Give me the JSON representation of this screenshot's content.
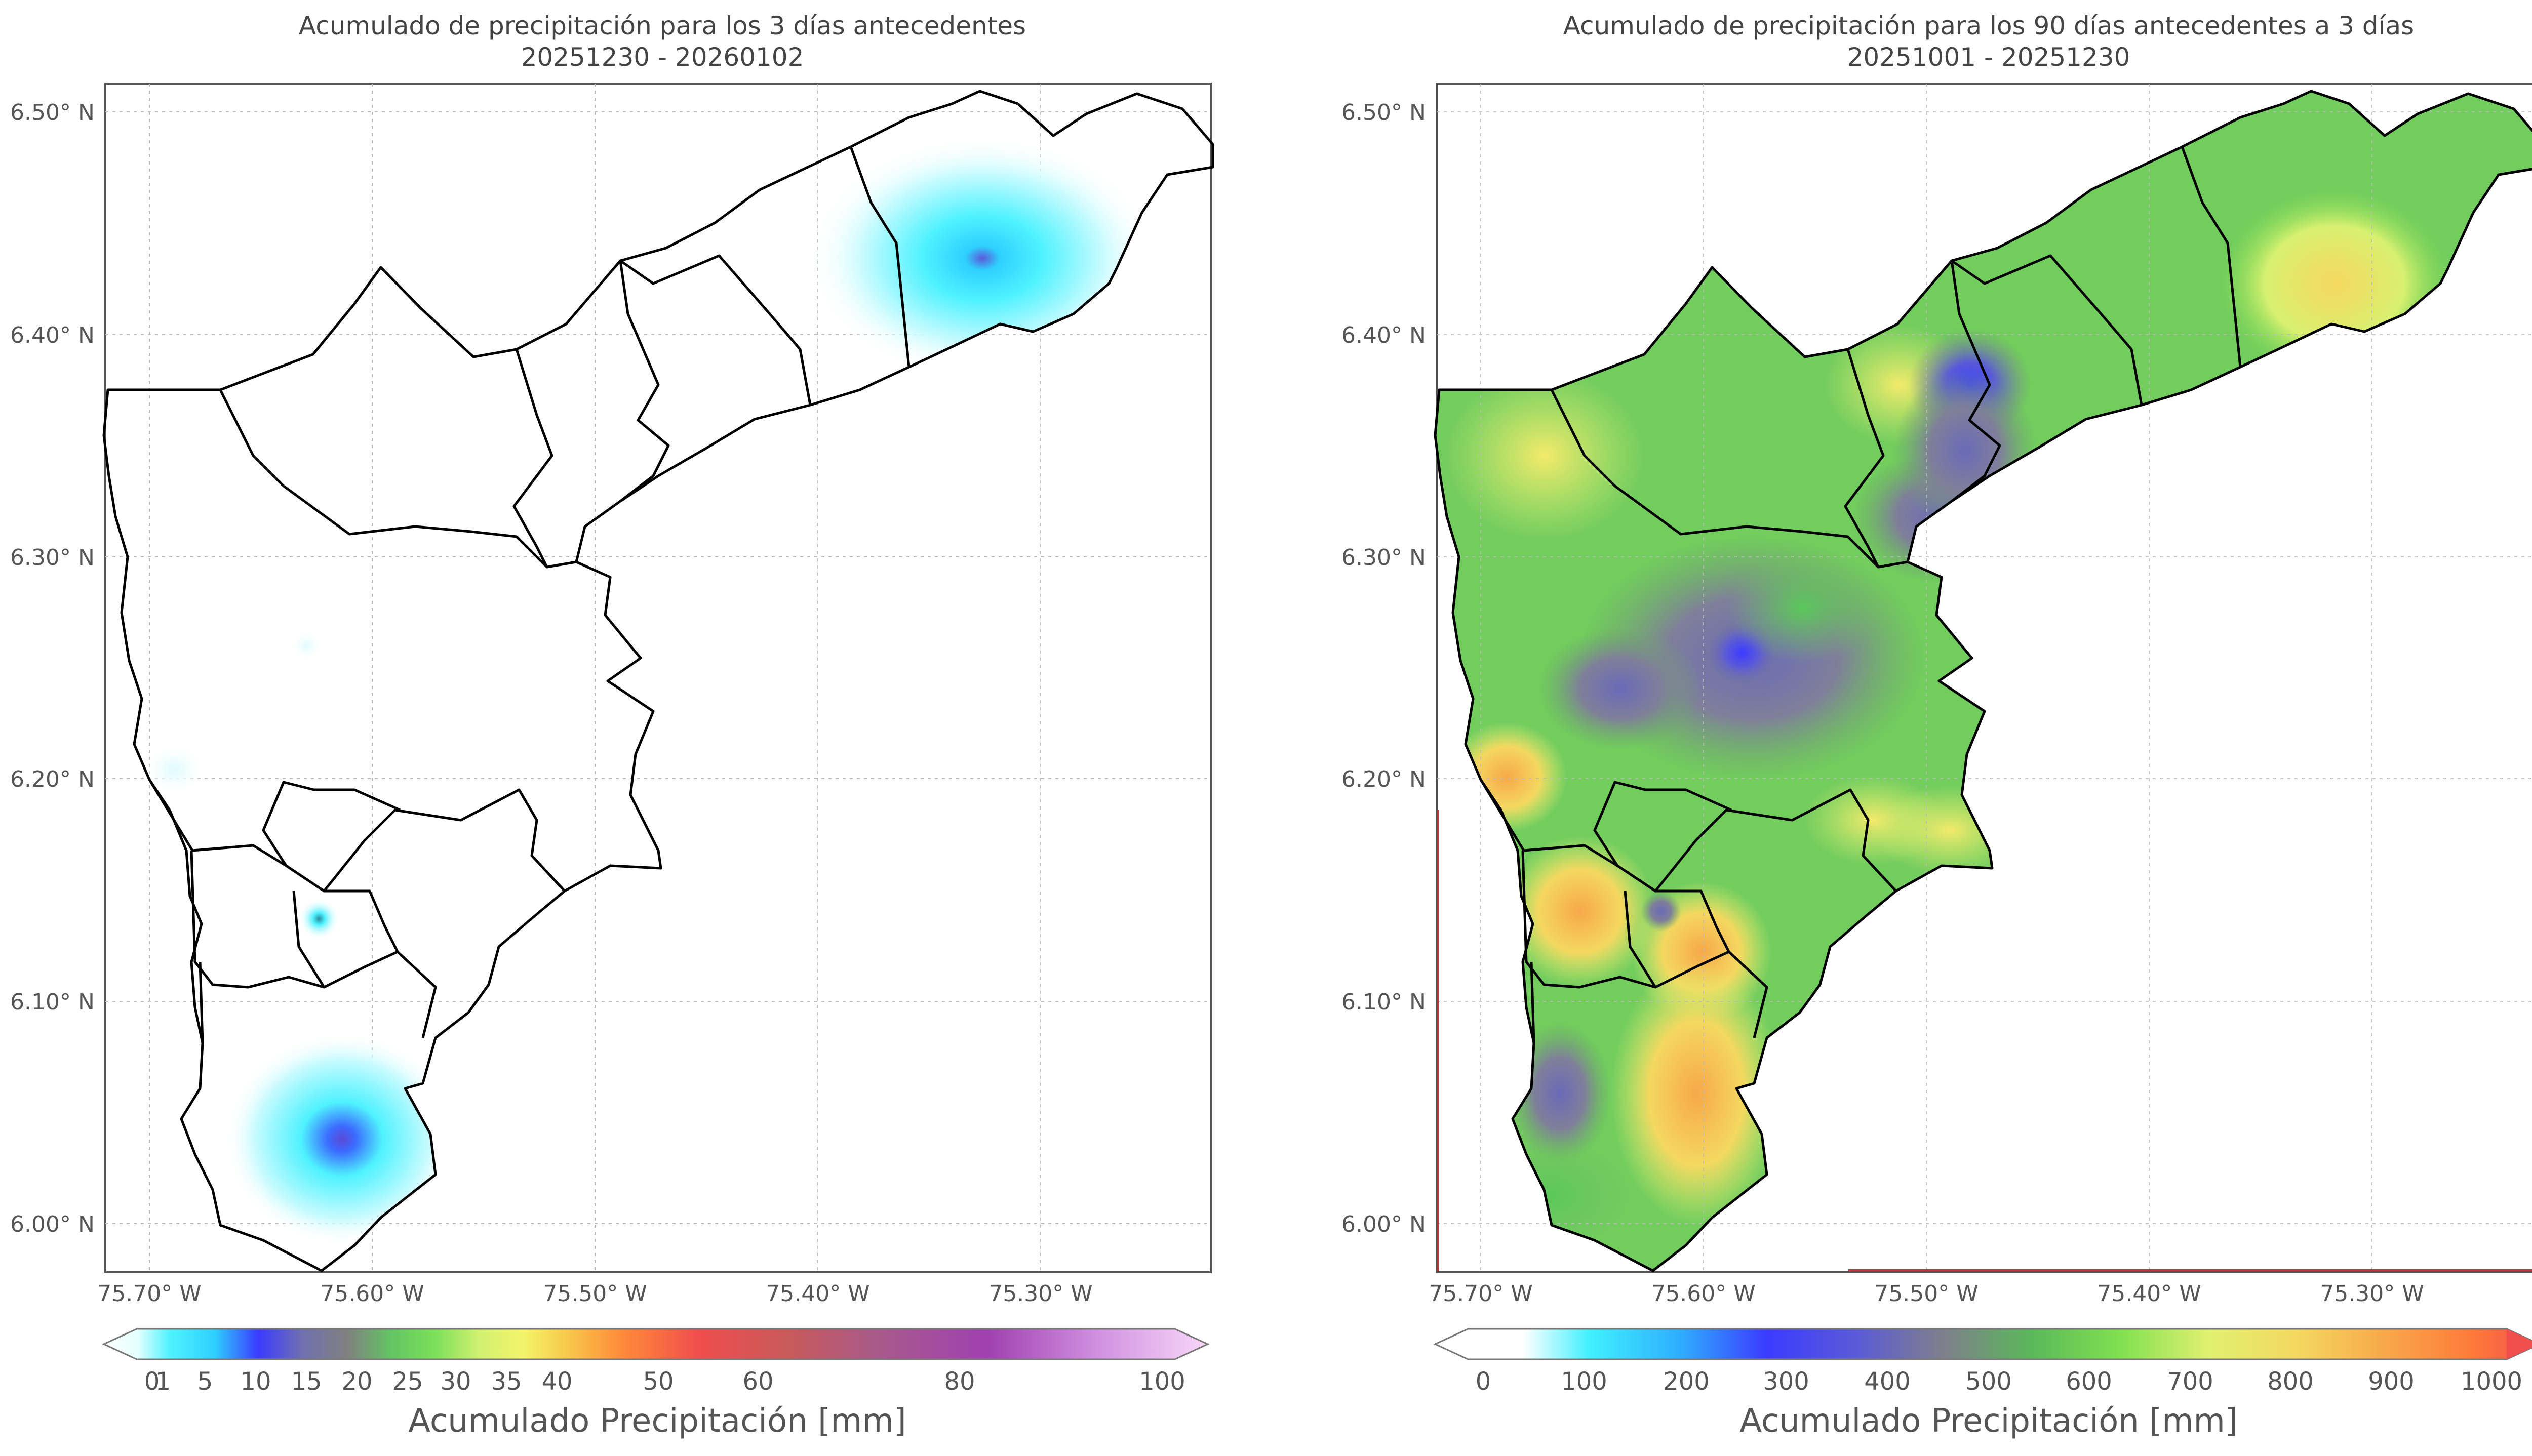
{
  "left_panel": {
    "title_line1": "Acumulado de precipitación para los 3 días antecedentes",
    "title_line2": "20251230 - 20260102",
    "lat_labels": [
      "6.50° N",
      "6.40° N",
      "6.30° N",
      "6.20° N",
      "6.10° N",
      "6.00° N"
    ],
    "lon_labels": [
      "75.70° W",
      "75.60° W",
      "75.50° W",
      "75.40° W",
      "75.30° W"
    ],
    "colorbar_ticks": [
      "0",
      "1",
      "5",
      "10",
      "15",
      "20",
      "25",
      "30",
      "35",
      "40",
      "50",
      "60",
      "80",
      "100"
    ],
    "colorbar_label": "Acumulado Precipitación [mm]",
    "colors": [
      "#ffffff",
      "#e6ffff",
      "#4ff2ff",
      "#2ed0ff",
      "#3b3bff",
      "#5a5ad8",
      "#7f7fa3",
      "#808080",
      "#63c463",
      "#7ce05a",
      "#c8f06a",
      "#f4f46a",
      "#f7d25a",
      "#f7b24a",
      "#ff7a3a",
      "#f04d4d",
      "#c85a5a",
      "#b05a8a",
      "#a040b0",
      "#d090e0",
      "#f8d8f8"
    ]
  },
  "right_panel": {
    "title_line1": "Acumulado de precipitación para los 90 días antecedentes a 3 días",
    "title_line2": "20251001 - 20251230",
    "lat_labels": [
      "6.50° N",
      "6.40° N",
      "6.30° N",
      "6.20° N",
      "6.10° N",
      "6.00° N"
    ],
    "lon_labels": [
      "75.70° W",
      "75.60° W",
      "75.50° W",
      "75.40° W",
      "75.30° W"
    ],
    "colorbar_ticks": [
      "0",
      "100",
      "200",
      "300",
      "400",
      "500",
      "600",
      "700",
      "800",
      "900",
      "1000"
    ],
    "colorbar_label": "Acumulado Precipitación [mm]",
    "colors": [
      "#ffffff",
      "#40f0ff",
      "#2ec0ff",
      "#3b3bff",
      "#5a5ad8",
      "#7f7f8c",
      "#6fa06f",
      "#5ac85a",
      "#80e050",
      "#d8f070",
      "#f4e060",
      "#f7b04a",
      "#ff7a3a",
      "#f04d4d"
    ]
  }
}
